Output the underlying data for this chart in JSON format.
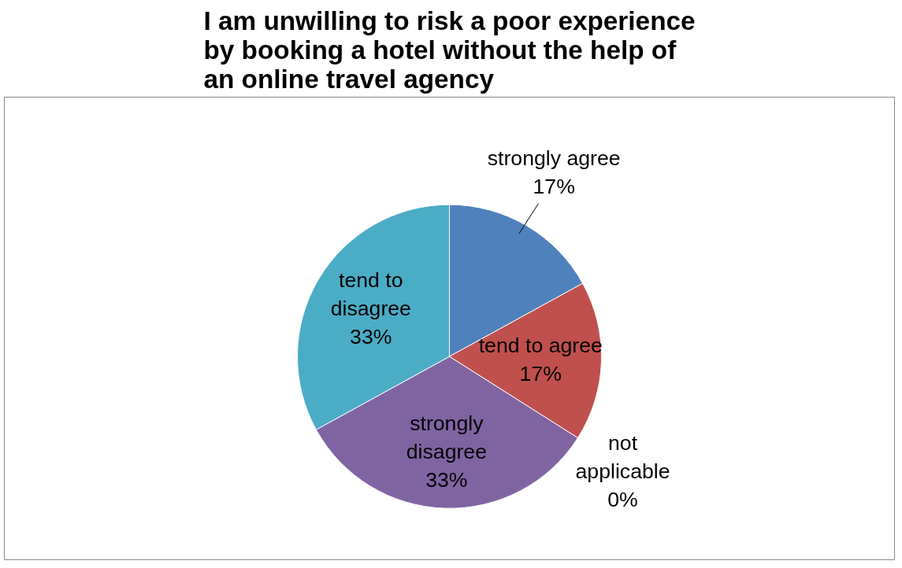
{
  "chart_data": {
    "type": "pie",
    "title": "I am unwilling to risk a poor experience by booking a hotel without the help of an online travel agency",
    "categories": [
      "strongly agree",
      "tend to agree",
      "not applicable",
      "strongly disagree",
      "tend to disagree"
    ],
    "values": [
      17,
      17,
      0,
      33,
      33
    ],
    "colors": [
      "#4f81bd",
      "#c0504d",
      "#9bbb59",
      "#8064a2",
      "#4bacc6"
    ],
    "value_labels": [
      "17%",
      "17%",
      "0%",
      "33%",
      "33%"
    ]
  }
}
